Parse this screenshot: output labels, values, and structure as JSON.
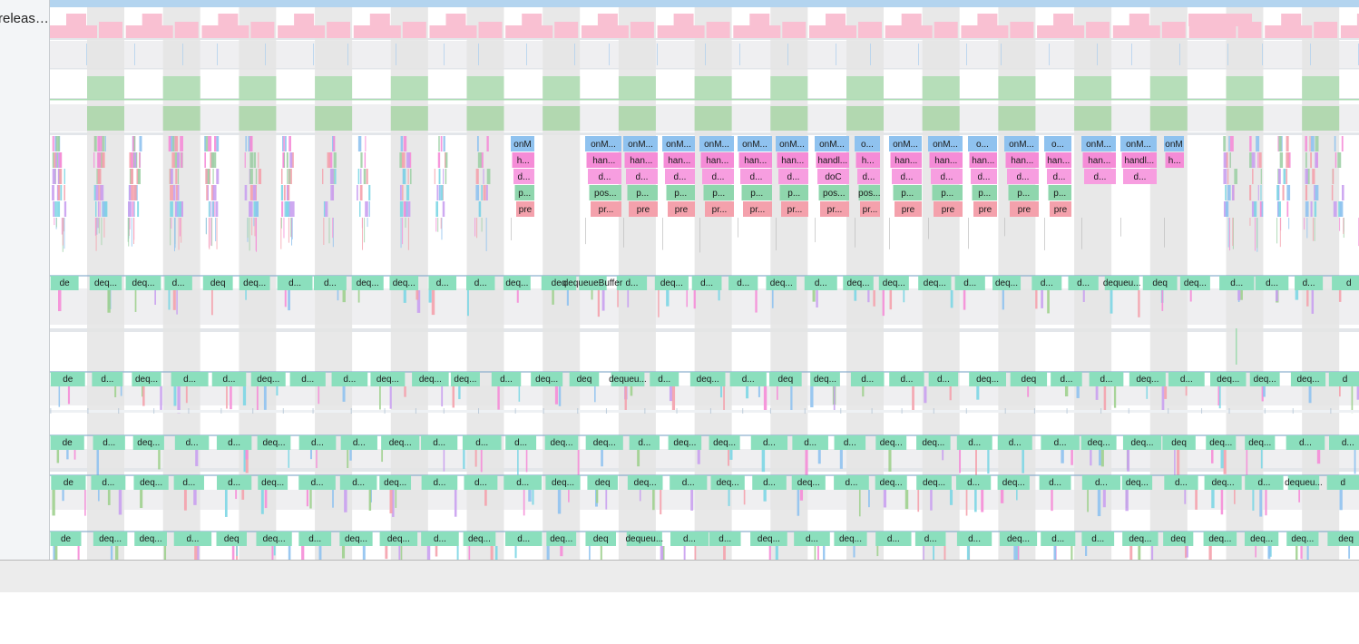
{
  "track_label": "releas…",
  "colors": {
    "main_thread_blue": "#8fc2ef",
    "handler_pink": "#f58cd7",
    "draw_pink": "#f79ee0",
    "perform_green": "#8fd6ad",
    "pre_red": "#f4a1ac",
    "dequeue_teal": "#8bdfbd",
    "frame_green": "#b6deb9",
    "stripe_gray": "#e4e4e4",
    "pink_bar": "#f9c0d2",
    "top_blue": "#b3d4ef"
  },
  "rows": {
    "onm_row": [
      "onM",
      "onM...",
      "onM...",
      "onM...",
      "onM...",
      "onM...",
      "onM...",
      "onM...",
      "o...",
      "onM...",
      "onM...",
      "o...",
      "onM...",
      "o...",
      "onM...",
      "onM...",
      "onM"
    ],
    "handler_row": [
      "h...",
      "han...",
      "han...",
      "han...",
      "han...",
      "han...",
      "han...",
      "handl...",
      "h...",
      "han...",
      "han...",
      "han...",
      "han...",
      "han...",
      "han...",
      "handl...",
      "h..."
    ],
    "draw_row": [
      "d...",
      "d...",
      "d...",
      "d...",
      "d...",
      "d...",
      "d...",
      "doC",
      "d...",
      "d...",
      "d...",
      "d...",
      "d...",
      "d...",
      "d...",
      "d..."
    ],
    "perform_row": [
      "p...",
      "pos...",
      "p...",
      "p...",
      "p...",
      "p...",
      "p...",
      "pos...",
      "pos...",
      "p...",
      "p...",
      "p...",
      "p...",
      "p..."
    ],
    "pre_row": [
      "pre",
      "pr...",
      "pre",
      "pre",
      "pr...",
      "pr...",
      "pr...",
      "pr...",
      "pr...",
      "pre",
      "pre",
      "pre",
      "pre",
      "pre"
    ],
    "dequeue_row_1": [
      "de",
      "deq...",
      "deq...",
      "d...",
      "deq",
      "deq...",
      "d...",
      "d...",
      "deq...",
      "deq...",
      "d...",
      "d...",
      "deq...",
      "deq",
      "dequeueBuffer",
      "d...",
      "deq...",
      "d...",
      "d...",
      "deq...",
      "d...",
      "deq...",
      "deq...",
      "deq...",
      "d...",
      "deq...",
      "d...",
      "d...",
      "dequeu...",
      "deq",
      "deq...",
      "d...",
      "d...",
      "d...",
      "d"
    ],
    "dequeue_row_2": [
      "de",
      "d...",
      "deq...",
      "d...",
      "d...",
      "deq...",
      "d...",
      "d...",
      "deq...",
      "deq...",
      "deq...",
      "d...",
      "deq...",
      "deq",
      "dequeu...",
      "d...",
      "deq...",
      "d...",
      "deq",
      "deq...",
      "d...",
      "d...",
      "d...",
      "deq...",
      "deq",
      "d...",
      "d...",
      "deq...",
      "d...",
      "deq...",
      "deq...",
      "deq...",
      "d"
    ],
    "dequeue_row_3": [
      "de",
      "d...",
      "deq...",
      "d...",
      "d...",
      "deq...",
      "d...",
      "d...",
      "deq...",
      "d...",
      "d...",
      "d...",
      "deq...",
      "deq...",
      "d...",
      "deq...",
      "deq...",
      "d...",
      "d...",
      "d...",
      "deq...",
      "deq...",
      "d...",
      "d...",
      "d...",
      "deq...",
      "deq...",
      "deq",
      "deq...",
      "deq...",
      "d...",
      "d..."
    ],
    "dequeue_row_4": [
      "de",
      "d...",
      "deq...",
      "d...",
      "d...",
      "deq...",
      "d...",
      "d...",
      "deq...",
      "d...",
      "d...",
      "d...",
      "deq...",
      "deq",
      "deq...",
      "d...",
      "deq...",
      "d...",
      "deq...",
      "d...",
      "deq...",
      "deq...",
      "d...",
      "deq...",
      "d...",
      "d...",
      "deq...",
      "d...",
      "deq...",
      "d...",
      "dequeu...",
      "d"
    ],
    "dequeue_row_5": [
      "de",
      "deq...",
      "deq...",
      "d...",
      "deq",
      "deq...",
      "d...",
      "deq...",
      "deq...",
      "d...",
      "deq...",
      "d...",
      "deq...",
      "deq",
      "dequeu...",
      "d...",
      "d...",
      "deq...",
      "d...",
      "deq...",
      "d...",
      "d...",
      "d...",
      "deq...",
      "d...",
      "d...",
      "deq...",
      "deq",
      "deq...",
      "deq...",
      "deq...",
      "deq"
    ]
  }
}
